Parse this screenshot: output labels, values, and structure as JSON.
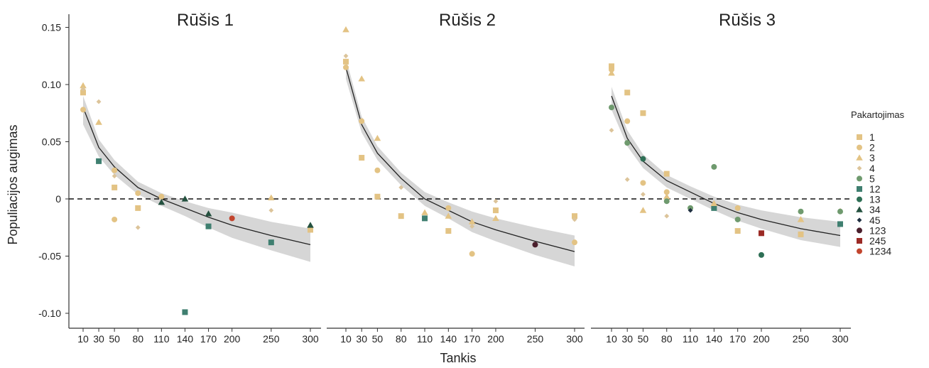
{
  "ylabel": "Populiacijos augimas",
  "xlabel": "Tankis",
  "legend": {
    "title": "Pakartojimas",
    "entries": [
      {
        "name": "1",
        "shape": "square",
        "color": "#e3c384"
      },
      {
        "name": "2",
        "shape": "circle",
        "color": "#e3c384"
      },
      {
        "name": "3",
        "shape": "triangle",
        "color": "#e3c384"
      },
      {
        "name": "4",
        "shape": "diamond",
        "color": "#dcc49a"
      },
      {
        "name": "5",
        "shape": "circle",
        "color": "#6f9a6e"
      },
      {
        "name": "12",
        "shape": "square",
        "color": "#3f7f70"
      },
      {
        "name": "13",
        "shape": "circle",
        "color": "#2e6f55"
      },
      {
        "name": "34",
        "shape": "triangle",
        "color": "#24513f"
      },
      {
        "name": "45",
        "shape": "diamond",
        "color": "#1f2f40"
      },
      {
        "name": "123",
        "shape": "circle",
        "color": "#4a1f2c"
      },
      {
        "name": "245",
        "shape": "square",
        "color": "#9b2a25"
      },
      {
        "name": "1234",
        "shape": "circle",
        "color": "#c2452e"
      }
    ]
  },
  "chart_data": {
    "type": "scatter",
    "ylabel": "Populiacijos augimas",
    "xlabel": "Tankis",
    "ylim": [
      -0.11,
      0.16
    ],
    "yticks": [
      0.15,
      0.1,
      0.05,
      0,
      -0.05,
      -0.1
    ],
    "ytick_labels": [
      "0.15",
      "0.10",
      "0.05",
      "0",
      "-0.05",
      "-0.10"
    ],
    "xticks": [
      10,
      30,
      50,
      80,
      110,
      140,
      170,
      200,
      250,
      300
    ],
    "reference_line_y": 0,
    "panels": [
      {
        "title": "Rūšis 1",
        "fit": [
          [
            10,
            0.08
          ],
          [
            30,
            0.045
          ],
          [
            50,
            0.028
          ],
          [
            80,
            0.01
          ],
          [
            110,
            0.0
          ],
          [
            140,
            -0.008
          ],
          [
            170,
            -0.016
          ],
          [
            200,
            -0.023
          ],
          [
            250,
            -0.032
          ],
          [
            300,
            -0.04
          ]
        ],
        "band": [
          [
            10,
            0.065,
            0.09
          ],
          [
            30,
            0.037,
            0.052
          ],
          [
            50,
            0.021,
            0.034
          ],
          [
            80,
            0.004,
            0.015
          ],
          [
            110,
            -0.006,
            0.005
          ],
          [
            140,
            -0.015,
            -0.002
          ],
          [
            170,
            -0.025,
            -0.008
          ],
          [
            200,
            -0.034,
            -0.012
          ],
          [
            250,
            -0.045,
            -0.02
          ],
          [
            300,
            -0.055,
            -0.026
          ]
        ],
        "points": [
          {
            "x": 10,
            "y": 0.093,
            "s": "1"
          },
          {
            "x": 10,
            "y": 0.078,
            "s": "2"
          },
          {
            "x": 10,
            "y": 0.099,
            "s": "3"
          },
          {
            "x": 10,
            "y": 0.096,
            "s": "4"
          },
          {
            "x": 30,
            "y": 0.067,
            "s": "3"
          },
          {
            "x": 30,
            "y": 0.085,
            "s": "4"
          },
          {
            "x": 30,
            "y": 0.033,
            "s": "12"
          },
          {
            "x": 50,
            "y": 0.01,
            "s": "1"
          },
          {
            "x": 50,
            "y": -0.018,
            "s": "2"
          },
          {
            "x": 50,
            "y": 0.025,
            "s": "2"
          },
          {
            "x": 50,
            "y": 0.02,
            "s": "4"
          },
          {
            "x": 80,
            "y": -0.008,
            "s": "1"
          },
          {
            "x": 80,
            "y": 0.005,
            "s": "2"
          },
          {
            "x": 80,
            "y": -0.025,
            "s": "4"
          },
          {
            "x": 110,
            "y": 0.002,
            "s": "2"
          },
          {
            "x": 110,
            "y": -0.003,
            "s": "34"
          },
          {
            "x": 140,
            "y": 0.0,
            "s": "34"
          },
          {
            "x": 140,
            "y": -0.099,
            "s": "12"
          },
          {
            "x": 170,
            "y": -0.024,
            "s": "12"
          },
          {
            "x": 170,
            "y": -0.013,
            "s": "34"
          },
          {
            "x": 200,
            "y": -0.017,
            "s": "1234"
          },
          {
            "x": 250,
            "y": 0.001,
            "s": "3"
          },
          {
            "x": 250,
            "y": -0.01,
            "s": "4"
          },
          {
            "x": 250,
            "y": -0.038,
            "s": "12"
          },
          {
            "x": 300,
            "y": -0.027,
            "s": "1"
          },
          {
            "x": 300,
            "y": -0.023,
            "s": "34"
          }
        ]
      },
      {
        "title": "Rūšis 2",
        "fit": [
          [
            10,
            0.115
          ],
          [
            30,
            0.065
          ],
          [
            50,
            0.04
          ],
          [
            80,
            0.018
          ],
          [
            110,
            0.0
          ],
          [
            140,
            -0.01
          ],
          [
            170,
            -0.02
          ],
          [
            200,
            -0.027
          ],
          [
            250,
            -0.037
          ],
          [
            300,
            -0.046
          ]
        ],
        "band": [
          [
            10,
            0.105,
            0.123
          ],
          [
            30,
            0.058,
            0.072
          ],
          [
            50,
            0.034,
            0.046
          ],
          [
            80,
            0.012,
            0.023
          ],
          [
            110,
            -0.006,
            0.006
          ],
          [
            140,
            -0.017,
            -0.003
          ],
          [
            170,
            -0.029,
            -0.011
          ],
          [
            200,
            -0.037,
            -0.017
          ],
          [
            250,
            -0.049,
            -0.025
          ],
          [
            300,
            -0.059,
            -0.032
          ]
        ],
        "points": [
          {
            "x": 10,
            "y": 0.12,
            "s": "1"
          },
          {
            "x": 10,
            "y": 0.115,
            "s": "2"
          },
          {
            "x": 10,
            "y": 0.148,
            "s": "3"
          },
          {
            "x": 10,
            "y": 0.125,
            "s": "4"
          },
          {
            "x": 30,
            "y": 0.036,
            "s": "1"
          },
          {
            "x": 30,
            "y": 0.068,
            "s": "2"
          },
          {
            "x": 30,
            "y": 0.105,
            "s": "3"
          },
          {
            "x": 50,
            "y": 0.002,
            "s": "1"
          },
          {
            "x": 50,
            "y": 0.025,
            "s": "2"
          },
          {
            "x": 50,
            "y": 0.053,
            "s": "3"
          },
          {
            "x": 80,
            "y": -0.015,
            "s": "1"
          },
          {
            "x": 80,
            "y": 0.01,
            "s": "4"
          },
          {
            "x": 110,
            "y": -0.017,
            "s": "12"
          },
          {
            "x": 110,
            "y": -0.012,
            "s": "3"
          },
          {
            "x": 140,
            "y": -0.028,
            "s": "1"
          },
          {
            "x": 140,
            "y": -0.008,
            "s": "2"
          },
          {
            "x": 140,
            "y": -0.015,
            "s": "3"
          },
          {
            "x": 170,
            "y": -0.048,
            "s": "2"
          },
          {
            "x": 170,
            "y": -0.02,
            "s": "3"
          },
          {
            "x": 170,
            "y": -0.024,
            "s": "4"
          },
          {
            "x": 200,
            "y": -0.01,
            "s": "1"
          },
          {
            "x": 200,
            "y": -0.017,
            "s": "3"
          },
          {
            "x": 200,
            "y": -0.002,
            "s": "4"
          },
          {
            "x": 250,
            "y": -0.04,
            "s": "123"
          },
          {
            "x": 300,
            "y": -0.015,
            "s": "1"
          },
          {
            "x": 300,
            "y": -0.038,
            "s": "2"
          },
          {
            "x": 300,
            "y": -0.018,
            "s": "4"
          }
        ]
      },
      {
        "title": "Rūšis 3",
        "fit": [
          [
            10,
            0.09
          ],
          [
            30,
            0.053
          ],
          [
            50,
            0.033
          ],
          [
            80,
            0.016
          ],
          [
            110,
            0.006
          ],
          [
            140,
            -0.004
          ],
          [
            170,
            -0.012
          ],
          [
            200,
            -0.018
          ],
          [
            250,
            -0.026
          ],
          [
            300,
            -0.032
          ]
        ],
        "band": [
          [
            10,
            0.078,
            0.098
          ],
          [
            30,
            0.046,
            0.06
          ],
          [
            50,
            0.027,
            0.039
          ],
          [
            80,
            0.01,
            0.021
          ],
          [
            110,
            0.0,
            0.011
          ],
          [
            140,
            -0.01,
            0.002
          ],
          [
            170,
            -0.019,
            -0.005
          ],
          [
            200,
            -0.026,
            -0.01
          ],
          [
            250,
            -0.036,
            -0.016
          ],
          [
            300,
            -0.042,
            -0.02
          ]
        ],
        "points": [
          {
            "x": 10,
            "y": 0.116,
            "s": "1"
          },
          {
            "x": 10,
            "y": 0.113,
            "s": "2"
          },
          {
            "x": 10,
            "y": 0.11,
            "s": "3"
          },
          {
            "x": 10,
            "y": 0.06,
            "s": "4"
          },
          {
            "x": 10,
            "y": 0.08,
            "s": "5"
          },
          {
            "x": 30,
            "y": 0.093,
            "s": "1"
          },
          {
            "x": 30,
            "y": 0.068,
            "s": "2"
          },
          {
            "x": 30,
            "y": 0.017,
            "s": "4"
          },
          {
            "x": 30,
            "y": 0.049,
            "s": "5"
          },
          {
            "x": 50,
            "y": 0.075,
            "s": "1"
          },
          {
            "x": 50,
            "y": 0.014,
            "s": "2"
          },
          {
            "x": 50,
            "y": -0.01,
            "s": "3"
          },
          {
            "x": 50,
            "y": 0.004,
            "s": "4"
          },
          {
            "x": 50,
            "y": 0.035,
            "s": "13"
          },
          {
            "x": 80,
            "y": 0.022,
            "s": "1"
          },
          {
            "x": 80,
            "y": 0.006,
            "s": "2"
          },
          {
            "x": 80,
            "y": 0.002,
            "s": "3"
          },
          {
            "x": 80,
            "y": -0.015,
            "s": "4"
          },
          {
            "x": 80,
            "y": -0.002,
            "s": "5"
          },
          {
            "x": 110,
            "y": -0.008,
            "s": "5"
          },
          {
            "x": 110,
            "y": -0.01,
            "s": "45"
          },
          {
            "x": 140,
            "y": 0.028,
            "s": "5"
          },
          {
            "x": 140,
            "y": -0.008,
            "s": "12"
          },
          {
            "x": 140,
            "y": -0.004,
            "s": "3"
          },
          {
            "x": 170,
            "y": -0.028,
            "s": "1"
          },
          {
            "x": 170,
            "y": -0.008,
            "s": "2"
          },
          {
            "x": 170,
            "y": -0.018,
            "s": "5"
          },
          {
            "x": 200,
            "y": -0.03,
            "s": "245"
          },
          {
            "x": 200,
            "y": -0.049,
            "s": "13"
          },
          {
            "x": 250,
            "y": -0.031,
            "s": "1"
          },
          {
            "x": 250,
            "y": -0.018,
            "s": "3"
          },
          {
            "x": 250,
            "y": -0.011,
            "s": "5"
          },
          {
            "x": 300,
            "y": -0.01,
            "s": "4"
          },
          {
            "x": 300,
            "y": -0.022,
            "s": "12"
          },
          {
            "x": 300,
            "y": -0.011,
            "s": "5"
          }
        ]
      }
    ]
  }
}
